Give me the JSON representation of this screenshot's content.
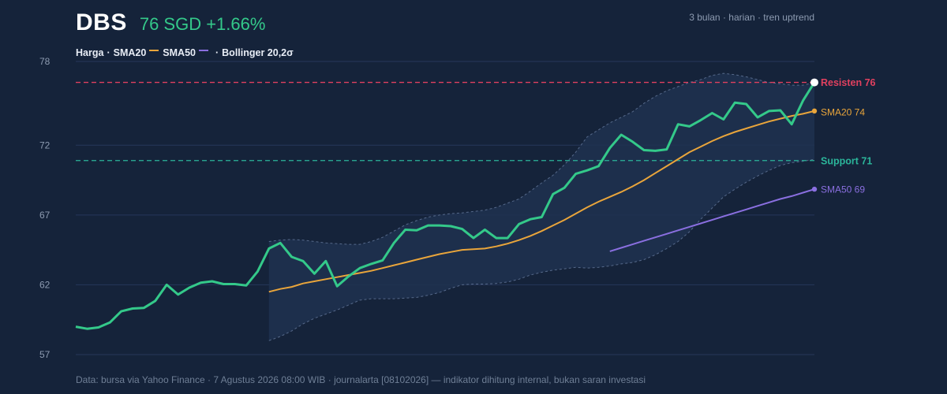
{
  "header": {
    "ticker": "DBS",
    "price_change": "76 SGD +1.66%",
    "meta": "3 bulan · harian · tren uptrend"
  },
  "legend": {
    "price": "Harga",
    "sma20": "SMA20",
    "sma50": "SMA50",
    "bollinger": "Bollinger 20,2σ"
  },
  "footer": "Data: bursa via Yahoo Finance · 7 Agustus 2026 08:00 WIB · journalarta [08102026] — indikator dihitung internal, bukan saran investasi",
  "colors": {
    "background": "#15233a",
    "price": "#34c98a",
    "sma20": "#e9a53b",
    "sma50": "#8a6fe0",
    "band": "#1e3150",
    "band_edge": "#56698a",
    "resistance": "#e0405f",
    "support": "#2bb59a",
    "grid": "#26375a"
  },
  "chart_data": {
    "type": "line",
    "ylim": [
      57,
      78
    ],
    "yticks": [
      57,
      62,
      67,
      72,
      78
    ],
    "x_count": 66,
    "grid": true,
    "series": [
      {
        "name": "Harga",
        "start_index": 0,
        "values": [
          59.0,
          58.85,
          58.95,
          59.3,
          60.1,
          60.3,
          60.35,
          60.85,
          62.0,
          61.3,
          61.8,
          62.15,
          62.25,
          62.05,
          62.05,
          61.95,
          62.95,
          64.6,
          65.0,
          64.0,
          63.7,
          62.8,
          63.7,
          61.9,
          62.6,
          63.2,
          63.5,
          63.75,
          65.0,
          65.95,
          65.9,
          66.25,
          66.25,
          66.2,
          66.0,
          65.35,
          65.95,
          65.35,
          65.35,
          66.35,
          66.7,
          66.85,
          68.5,
          68.95,
          69.95,
          70.2,
          70.5,
          71.8,
          72.75,
          72.25,
          71.65,
          71.6,
          71.7,
          73.5,
          73.35,
          73.8,
          74.3,
          73.85,
          75.05,
          74.95,
          74.0,
          74.45,
          74.5,
          73.5,
          75.2,
          76.5
        ]
      },
      {
        "name": "SMA20",
        "start_index": 17,
        "values": [
          61.5,
          61.7,
          61.85,
          62.1,
          62.25,
          62.4,
          62.55,
          62.7,
          62.85,
          63.0,
          63.2,
          63.4,
          63.6,
          63.8,
          64.0,
          64.2,
          64.35,
          64.5,
          64.55,
          64.6,
          64.75,
          64.95,
          65.2,
          65.5,
          65.85,
          66.25,
          66.65,
          67.1,
          67.55,
          67.95,
          68.3,
          68.65,
          69.05,
          69.5,
          70.0,
          70.5,
          71.0,
          71.5,
          71.9,
          72.3,
          72.65,
          72.95,
          73.2,
          73.45,
          73.7,
          73.9,
          74.1,
          74.25,
          74.45
        ]
      },
      {
        "name": "SMA50",
        "start_index": 47,
        "values": [
          64.4,
          64.65,
          64.9,
          65.15,
          65.4,
          65.65,
          65.9,
          66.15,
          66.4,
          66.65,
          66.9,
          67.15,
          67.4,
          67.65,
          67.9,
          68.15,
          68.35,
          68.6,
          68.85
        ]
      },
      {
        "name": "Bollinger upper",
        "start_index": 17,
        "values": [
          65.1,
          65.2,
          65.25,
          65.2,
          65.1,
          65.0,
          64.95,
          64.9,
          64.9,
          65.1,
          65.4,
          65.85,
          66.3,
          66.6,
          66.85,
          67.0,
          67.1,
          67.15,
          67.25,
          67.35,
          67.55,
          67.85,
          68.15,
          68.7,
          69.3,
          69.85,
          70.6,
          71.5,
          72.6,
          73.1,
          73.6,
          74.0,
          74.4,
          75.0,
          75.5,
          75.9,
          76.2,
          76.5,
          76.7,
          77.0,
          77.15,
          77.05,
          76.9,
          76.7,
          76.5,
          76.4,
          76.3,
          76.3,
          76.5
        ]
      },
      {
        "name": "Bollinger lower",
        "start_index": 17,
        "values": [
          58.0,
          58.3,
          58.7,
          59.2,
          59.6,
          59.9,
          60.2,
          60.55,
          60.9,
          61.0,
          61.0,
          61.0,
          61.05,
          61.1,
          61.25,
          61.45,
          61.75,
          62.0,
          62.05,
          62.05,
          62.1,
          62.2,
          62.4,
          62.7,
          62.9,
          63.05,
          63.15,
          63.25,
          63.2,
          63.25,
          63.35,
          63.5,
          63.6,
          63.8,
          64.15,
          64.6,
          65.1,
          65.8,
          66.7,
          67.5,
          68.3,
          68.85,
          69.35,
          69.8,
          70.2,
          70.55,
          70.75,
          70.85,
          71.0
        ]
      }
    ],
    "levels": [
      {
        "name": "resistance",
        "label": "Resisten 76",
        "value": 76.5
      },
      {
        "name": "support",
        "label": "Support 71",
        "value": 70.9
      }
    ],
    "end_labels": [
      {
        "name": "sma20",
        "label": "SMA20 74",
        "value": 74.4
      },
      {
        "name": "sma50",
        "label": "SMA50 69",
        "value": 68.85
      }
    ]
  }
}
